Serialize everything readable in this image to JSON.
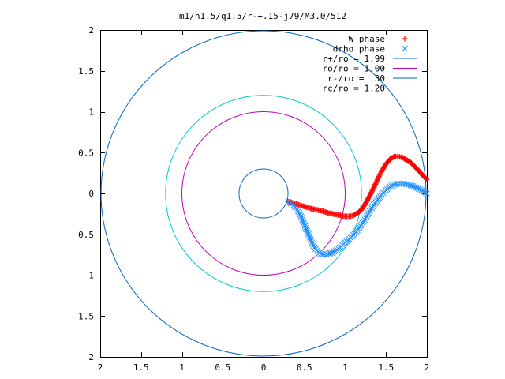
{
  "chart_data": {
    "type": "scatter",
    "title": "m1/n1.5/q1.5/r-+.15-j79/M3.0/512",
    "xlabel": "",
    "ylabel": "",
    "xlim": [
      -2,
      2
    ],
    "ylim": [
      -2,
      2
    ],
    "x_ticks": [
      -2,
      -1.5,
      -1,
      -0.5,
      0,
      0.5,
      1,
      1.5,
      2
    ],
    "x_tick_labels": [
      "2",
      "1.5",
      "1",
      "0.5",
      "0",
      "0.5",
      "1",
      "1.5",
      "2"
    ],
    "y_ticks": [
      2,
      1.5,
      1,
      0.5,
      0,
      -0.5,
      -1,
      -1.5,
      -2
    ],
    "y_tick_labels": [
      "2",
      "1.5",
      "1",
      "0.5",
      "0",
      "0.5",
      "1",
      "1.5",
      "2"
    ],
    "grid": false,
    "legend_position": "top-right",
    "series": [
      {
        "name": "W phase",
        "kind": "points",
        "marker": "plus",
        "color": "#ff0000",
        "x": [
          0.3,
          0.4,
          0.5,
          0.6,
          0.7,
          0.8,
          0.9,
          1.0,
          1.05,
          1.1,
          1.15,
          1.2,
          1.25,
          1.3,
          1.35,
          1.4,
          1.45,
          1.5,
          1.55,
          1.6,
          1.65,
          1.7,
          1.75,
          1.8,
          1.85,
          1.9,
          1.95,
          2.0
        ],
        "y": [
          -0.1,
          -0.13,
          -0.16,
          -0.19,
          -0.21,
          -0.24,
          -0.26,
          -0.28,
          -0.28,
          -0.27,
          -0.24,
          -0.2,
          -0.12,
          -0.03,
          0.07,
          0.18,
          0.28,
          0.36,
          0.42,
          0.45,
          0.45,
          0.44,
          0.41,
          0.38,
          0.33,
          0.28,
          0.22,
          0.17
        ]
      },
      {
        "name": "drho phase",
        "kind": "points",
        "marker": "cross",
        "color": "#1e90ff",
        "x": [
          0.3,
          0.35,
          0.4,
          0.45,
          0.5,
          0.55,
          0.6,
          0.65,
          0.7,
          0.75,
          0.8,
          0.85,
          0.9,
          0.95,
          1.0,
          1.05,
          1.1,
          1.15,
          1.2,
          1.25,
          1.3,
          1.35,
          1.4,
          1.45,
          1.5,
          1.55,
          1.6,
          1.65,
          1.7,
          1.75,
          1.8,
          1.85,
          1.9,
          1.95,
          2.0
        ],
        "y": [
          -0.1,
          -0.13,
          -0.18,
          -0.26,
          -0.38,
          -0.5,
          -0.62,
          -0.7,
          -0.74,
          -0.75,
          -0.74,
          -0.72,
          -0.69,
          -0.65,
          -0.6,
          -0.56,
          -0.51,
          -0.45,
          -0.38,
          -0.3,
          -0.22,
          -0.14,
          -0.07,
          -0.01,
          0.04,
          0.08,
          0.11,
          0.12,
          0.12,
          0.11,
          0.1,
          0.08,
          0.06,
          0.03,
          0.0
        ]
      },
      {
        "name": "r+/ro = 1.99",
        "kind": "circle",
        "radius": 1.99,
        "color": "#0066cc"
      },
      {
        "name": "ro/ro = 1.00",
        "kind": "circle",
        "radius": 1.0,
        "color": "#c000c0"
      },
      {
        "name": "r-/ro = .30",
        "kind": "circle",
        "radius": 0.3,
        "color": "#0066cc"
      },
      {
        "name": "rc/ro = 1.20",
        "kind": "circle",
        "radius": 1.2,
        "color": "#00cccc"
      }
    ]
  }
}
